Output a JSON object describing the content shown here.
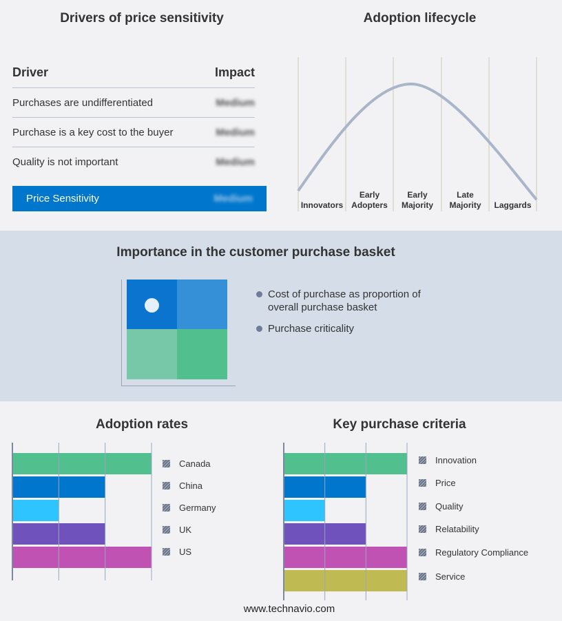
{
  "drivers": {
    "title": "Drivers of price sensitivity",
    "col_driver": "Driver",
    "col_impact": "Impact",
    "rows": [
      {
        "driver": "Purchases are undifferentiated",
        "impact": "Medium"
      },
      {
        "driver": "Purchase is a key cost to the buyer",
        "impact": "Medium"
      },
      {
        "driver": "Quality is not important",
        "impact": "Medium"
      }
    ],
    "summary": {
      "label": "Price Sensitivity",
      "impact": "Medium"
    }
  },
  "lifecycle": {
    "title": "Adoption lifecycle",
    "stages": [
      [
        "Innovators"
      ],
      [
        "Early",
        "Adopters"
      ],
      [
        "Early",
        "Majority"
      ],
      [
        "Late",
        "Majority"
      ],
      [
        "Laggards"
      ]
    ]
  },
  "basket": {
    "title": "Importance in the customer purchase basket",
    "legend": [
      "Cost of purchase as proportion of overall purchase basket",
      "Purchase criticality"
    ],
    "colors": [
      "#0a74cf",
      "#3590d8",
      "#77c8a8",
      "#52bf8f"
    ]
  },
  "chart_data": [
    {
      "type": "bar",
      "title": "Adoption rates",
      "categories": [
        "Canada",
        "China",
        "Germany",
        "UK",
        "US"
      ],
      "values": [
        3,
        2,
        1,
        2,
        3
      ],
      "xlim": [
        0,
        3
      ],
      "grid": true,
      "legend": "right",
      "colors": [
        "#52bf8f",
        "#0077cc",
        "#2ec4ff",
        "#6f52bb",
        "#c052b4"
      ]
    },
    {
      "type": "bar",
      "title": "Key purchase criteria",
      "categories": [
        "Innovation",
        "Price",
        "Quality",
        "Relatability",
        "Regulatory Compliance",
        "Service"
      ],
      "values": [
        3,
        2,
        1,
        2,
        3,
        3
      ],
      "xlim": [
        0,
        3
      ],
      "grid": true,
      "legend": "right",
      "colors": [
        "#52bf8f",
        "#0077cc",
        "#2ec4ff",
        "#6f52bb",
        "#c052b4",
        "#bfbb52"
      ]
    }
  ],
  "footer": "www.technavio.com"
}
